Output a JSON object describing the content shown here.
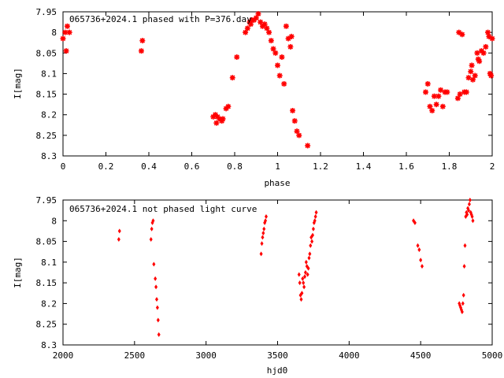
{
  "chart_data": [
    {
      "type": "scatter",
      "title": "065736+2024.1 phased with P=376.day",
      "xlabel": "phase",
      "ylabel": "I[mag]",
      "xlim": [
        0,
        2
      ],
      "ylim": [
        7.95,
        8.3
      ],
      "y_inverted": true,
      "grid": false,
      "marker": "star",
      "color": "#ff0000",
      "xticks": [
        "0",
        "0.2",
        "0.4",
        "0.6",
        "0.8",
        "1",
        "1.2",
        "1.4",
        "1.6",
        "1.8",
        "2"
      ],
      "yticks": [
        "7.95",
        "8",
        "8.05",
        "8.1",
        "8.15",
        "8.2",
        "8.25",
        "8.3"
      ],
      "series": [
        {
          "x": [
            0.0,
            0.01,
            0.02,
            0.03,
            0.015,
            0.365,
            0.37,
            0.7,
            0.71,
            0.715,
            0.72,
            0.73,
            0.74,
            0.745,
            0.76,
            0.77,
            0.79,
            0.81,
            0.85,
            0.86,
            0.87,
            0.875,
            0.88,
            0.89,
            0.9,
            0.91,
            0.92,
            0.93,
            0.94,
            0.95,
            0.96,
            0.97,
            0.98,
            0.99,
            1.0,
            1.01,
            1.02,
            1.03,
            1.04,
            1.05,
            1.06,
            1.065,
            1.07,
            1.08,
            1.09,
            1.1,
            1.14,
            1.69,
            1.7,
            1.71,
            1.72,
            1.73,
            1.74,
            1.75,
            1.76,
            1.77,
            1.78,
            1.79,
            1.84,
            1.845,
            1.85,
            1.86,
            1.87,
            1.88,
            1.89,
            1.9,
            1.905,
            1.91,
            1.92,
            1.93,
            1.935,
            1.94,
            1.95,
            1.96,
            1.97,
            1.98,
            1.985,
            1.99,
            1.995,
            2.0
          ],
          "y": [
            8.015,
            8.0,
            7.985,
            8.0,
            8.045,
            8.045,
            8.02,
            8.205,
            8.2,
            8.22,
            8.205,
            8.21,
            8.215,
            8.21,
            8.185,
            8.18,
            8.11,
            8.06,
            8.0,
            7.99,
            7.975,
            7.98,
            7.97,
            7.97,
            7.965,
            7.955,
            7.975,
            7.985,
            7.98,
            7.99,
            8.0,
            8.02,
            8.04,
            8.05,
            8.08,
            8.105,
            8.06,
            8.125,
            7.985,
            8.015,
            8.035,
            8.01,
            8.19,
            8.215,
            8.24,
            8.25,
            8.275,
            8.145,
            8.125,
            8.18,
            8.19,
            8.155,
            8.175,
            8.155,
            8.14,
            8.18,
            8.145,
            8.145,
            8.16,
            8.0,
            8.15,
            8.005,
            8.145,
            8.145,
            8.11,
            8.095,
            8.08,
            8.115,
            8.105,
            8.05,
            8.065,
            8.07,
            8.045,
            8.05,
            8.035,
            8.0,
            8.01,
            8.1,
            8.105,
            8.015
          ]
        }
      ]
    },
    {
      "type": "scatter",
      "title": "065736+2024.1 not phased light curve",
      "xlabel": "hjd0",
      "ylabel": "I[mag]",
      "xlim": [
        2000,
        5000
      ],
      "ylim": [
        7.95,
        8.3
      ],
      "y_inverted": true,
      "grid": false,
      "marker": "diamond",
      "color": "#ff0000",
      "xticks": [
        "2000",
        "2500",
        "3000",
        "3500",
        "4000",
        "4500",
        "5000"
      ],
      "yticks": [
        "7.95",
        "8",
        "8.05",
        "8.1",
        "8.15",
        "8.2",
        "8.25",
        "8.3"
      ],
      "series": [
        {
          "x": [
            2390,
            2395,
            2615,
            2620,
            2625,
            2630,
            2635,
            2645,
            2650,
            2655,
            2660,
            2665,
            2670,
            3385,
            3390,
            3395,
            3400,
            3405,
            3410,
            3415,
            3420,
            3650,
            3655,
            3660,
            3665,
            3670,
            3675,
            3680,
            3685,
            3690,
            3695,
            3700,
            3705,
            3710,
            3715,
            3720,
            3725,
            3730,
            3735,
            3740,
            3745,
            3750,
            3755,
            3760,
            3765,
            3770,
            4450,
            4460,
            4480,
            4490,
            4500,
            4510,
            4770,
            4775,
            4780,
            4785,
            4790,
            4795,
            4800,
            4805,
            4810,
            4815,
            4820,
            4825,
            4830,
            4835,
            4840,
            4845,
            4850,
            4855,
            4860,
            4865
          ],
          "y": [
            8.045,
            8.025,
            8.045,
            8.02,
            8.005,
            8.0,
            8.105,
            8.14,
            8.16,
            8.19,
            8.21,
            8.24,
            8.275,
            8.08,
            8.055,
            8.04,
            8.03,
            8.02,
            8.005,
            8.0,
            7.99,
            8.13,
            8.15,
            8.18,
            8.19,
            8.175,
            8.14,
            8.15,
            8.16,
            8.135,
            8.125,
            8.1,
            8.11,
            8.13,
            8.115,
            8.09,
            8.08,
            8.06,
            8.04,
            8.05,
            8.035,
            8.02,
            8.005,
            8.0,
            7.99,
            7.98,
            8.0,
            8.005,
            8.06,
            8.07,
            8.095,
            8.11,
            8.2,
            8.205,
            8.21,
            8.215,
            8.22,
            8.2,
            8.18,
            8.11,
            8.06,
            7.99,
            7.98,
            7.985,
            7.97,
            7.975,
            7.96,
            7.95,
            7.98,
            7.985,
            7.99,
            8.0
          ]
        }
      ]
    }
  ]
}
